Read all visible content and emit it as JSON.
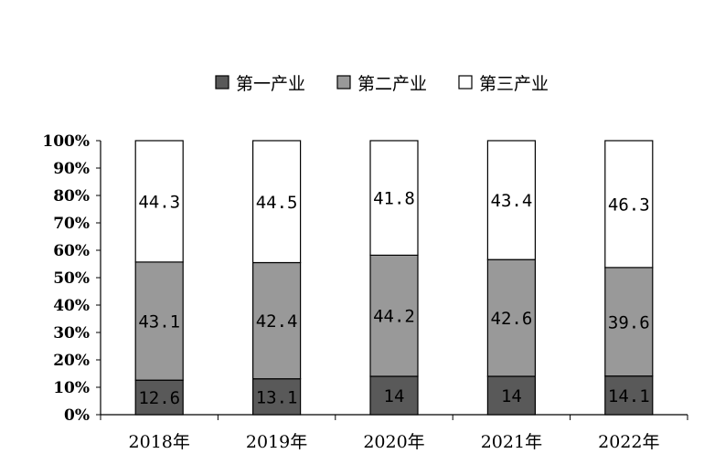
{
  "chart_data": {
    "type": "bar",
    "stacked": "percent",
    "categories": [
      "2018年",
      "2019年",
      "2020年",
      "2021年",
      "2022年"
    ],
    "series": [
      {
        "name": "第一产业",
        "values": [
          12.6,
          13.1,
          14,
          14,
          14.1
        ],
        "labels": [
          "12.6",
          "13.1",
          "14",
          "14",
          "14.1"
        ],
        "color": "#595959"
      },
      {
        "name": "第二产业",
        "values": [
          43.1,
          42.4,
          44.2,
          42.6,
          39.6
        ],
        "labels": [
          "43.1",
          "42.4",
          "44.2",
          "42.6",
          "39.6"
        ],
        "color": "#999999"
      },
      {
        "name": "第三产业",
        "values": [
          44.3,
          44.5,
          41.8,
          43.4,
          46.3
        ],
        "labels": [
          "44.3",
          "44.5",
          "41.8",
          "43.4",
          "46.3"
        ],
        "color": "#ffffff"
      }
    ],
    "y_ticks": [
      "0%",
      "10%",
      "20%",
      "30%",
      "40%",
      "50%",
      "60%",
      "70%",
      "80%",
      "90%",
      "100%"
    ],
    "ylim": [
      0,
      100
    ],
    "legend": "top",
    "grid": false,
    "title": "",
    "xlabel": "",
    "ylabel": ""
  }
}
